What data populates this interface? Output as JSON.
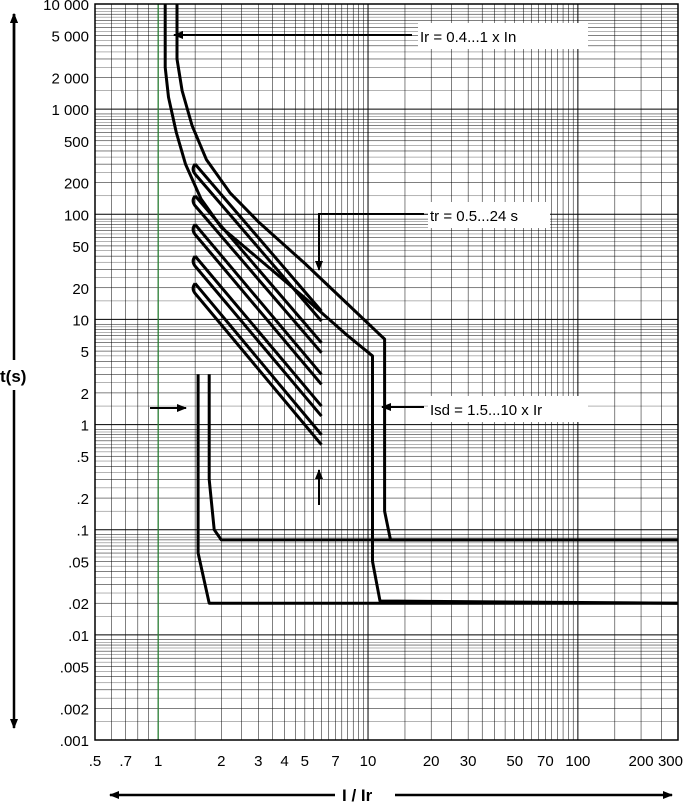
{
  "chart_data": {
    "type": "line",
    "title": "",
    "xlabel": "I / Ir",
    "ylabel": "t(s)",
    "x_scale": "log",
    "y_scale": "log",
    "xlim": [
      0.5,
      300
    ],
    "ylim": [
      0.001,
      10000
    ],
    "grid": true,
    "x_ticks": [
      {
        "v": 0.5,
        "label": ".5"
      },
      {
        "v": 0.7,
        "label": ".7"
      },
      {
        "v": 1,
        "label": "1"
      },
      {
        "v": 2,
        "label": "2"
      },
      {
        "v": 3,
        "label": "3"
      },
      {
        "v": 4,
        "label": "4"
      },
      {
        "v": 5,
        "label": "5"
      },
      {
        "v": 7,
        "label": "7"
      },
      {
        "v": 10,
        "label": "10"
      },
      {
        "v": 20,
        "label": "20"
      },
      {
        "v": 30,
        "label": "30"
      },
      {
        "v": 50,
        "label": "50"
      },
      {
        "v": 70,
        "label": "70"
      },
      {
        "v": 100,
        "label": "100"
      },
      {
        "v": 200,
        "label": "200"
      },
      {
        "v": 300,
        "label": "300"
      }
    ],
    "y_ticks": [
      {
        "v": 10000,
        "label": "10 000"
      },
      {
        "v": 5000,
        "label": "5 000"
      },
      {
        "v": 2000,
        "label": "2 000"
      },
      {
        "v": 1000,
        "label": "1 000"
      },
      {
        "v": 500,
        "label": "500"
      },
      {
        "v": 200,
        "label": "200"
      },
      {
        "v": 100,
        "label": "100"
      },
      {
        "v": 50,
        "label": "50"
      },
      {
        "v": 20,
        "label": "20"
      },
      {
        "v": 10,
        "label": "10"
      },
      {
        "v": 5,
        "label": "5"
      },
      {
        "v": 2,
        "label": "2"
      },
      {
        "v": 1,
        "label": "1"
      },
      {
        "v": 0.5,
        "label": ".5"
      },
      {
        "v": 0.2,
        "label": ".2"
      },
      {
        "v": 0.1,
        "label": ".1"
      },
      {
        "v": 0.05,
        "label": ".05"
      },
      {
        "v": 0.02,
        "label": ".02"
      },
      {
        "v": 0.01,
        "label": ".01"
      },
      {
        "v": 0.005,
        "label": ".005"
      },
      {
        "v": 0.002,
        "label": ".002"
      },
      {
        "v": 0.001,
        "label": ".001"
      }
    ],
    "reference_line": {
      "x": 1,
      "color": "#2e8b3a"
    },
    "series": [
      {
        "points": [
          [
            1.08,
            10000
          ],
          [
            1.08,
            2500
          ],
          [
            1.12,
            1300
          ],
          [
            1.22,
            600
          ],
          [
            1.35,
            300
          ],
          [
            1.6,
            140
          ],
          [
            2,
            75
          ],
          [
            3,
            38
          ],
          [
            5,
            16
          ],
          [
            8,
            7
          ],
          [
            10.5,
            4.5
          ],
          [
            10.5,
            0.05
          ],
          [
            11.4,
            0.021
          ],
          [
            300,
            0.02
          ]
        ]
      },
      {
        "points": [
          [
            1.23,
            10000
          ],
          [
            1.23,
            3000
          ],
          [
            1.3,
            1500
          ],
          [
            1.45,
            700
          ],
          [
            1.7,
            330
          ],
          [
            2.2,
            160
          ],
          [
            3,
            85
          ],
          [
            5,
            34
          ],
          [
            8,
            14
          ],
          [
            12,
            6.5
          ],
          [
            12,
            0.15
          ],
          [
            12.8,
            0.08
          ],
          [
            300,
            0.08
          ]
        ]
      },
      {
        "points": [
          [
            1.55,
            3
          ],
          [
            1.55,
            0.06
          ],
          [
            1.75,
            0.02
          ],
          [
            300,
            0.02
          ]
        ]
      },
      {
        "points": [
          [
            1.75,
            3
          ],
          [
            1.75,
            0.3
          ],
          [
            1.85,
            0.1
          ],
          [
            2,
            0.08
          ],
          [
            300,
            0.08
          ]
        ]
      }
    ],
    "tr_bands": [
      {
        "points": [
          [
            1.5,
            300
          ],
          [
            6,
            12
          ]
        ]
      },
      {
        "points": [
          [
            1.5,
            150
          ],
          [
            6,
            6
          ]
        ]
      },
      {
        "points": [
          [
            1.5,
            80
          ],
          [
            6,
            3
          ]
        ]
      },
      {
        "points": [
          [
            1.5,
            40
          ],
          [
            6,
            1.5
          ]
        ]
      },
      {
        "points": [
          [
            1.5,
            22
          ],
          [
            6,
            0.8
          ]
        ]
      }
    ],
    "annotations": [
      {
        "text": "Ir = 0.4...1 x In"
      },
      {
        "text": "tr = 0.5...24 s"
      },
      {
        "text": "Isd = 1.5...10 x Ir"
      }
    ]
  }
}
